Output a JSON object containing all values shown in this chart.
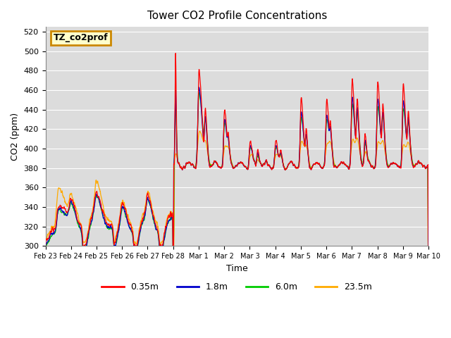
{
  "title": "Tower CO2 Profile Concentrations",
  "xlabel": "Time",
  "ylabel": "CO2 (ppm)",
  "ylim": [
    300,
    525
  ],
  "yticks": [
    300,
    320,
    340,
    360,
    380,
    400,
    420,
    440,
    460,
    480,
    500,
    520
  ],
  "legend_labels": [
    "0.35m",
    "1.8m",
    "6.0m",
    "23.5m"
  ],
  "legend_colors": [
    "#ff0000",
    "#0000cc",
    "#00cc00",
    "#ffaa00"
  ],
  "tag_label": "TZ_co2prof",
  "tag_facecolor": "#ffffcc",
  "tag_edgecolor": "#cc8800",
  "background_color": "#dcdcdc",
  "grid_color": "#ffffff",
  "xtick_labels": [
    "Feb 23",
    "Feb 24",
    "Feb 25",
    "Feb 26",
    "Feb 27",
    "Feb 28",
    "Mar 1",
    "Mar 2",
    "Mar 3",
    "Mar 4",
    "Mar 5",
    "Mar 6",
    "Mar 7",
    "Mar 8",
    "Mar 9",
    "Mar 10"
  ],
  "n_points": 1440,
  "figsize": [
    6.4,
    4.8
  ],
  "dpi": 100
}
